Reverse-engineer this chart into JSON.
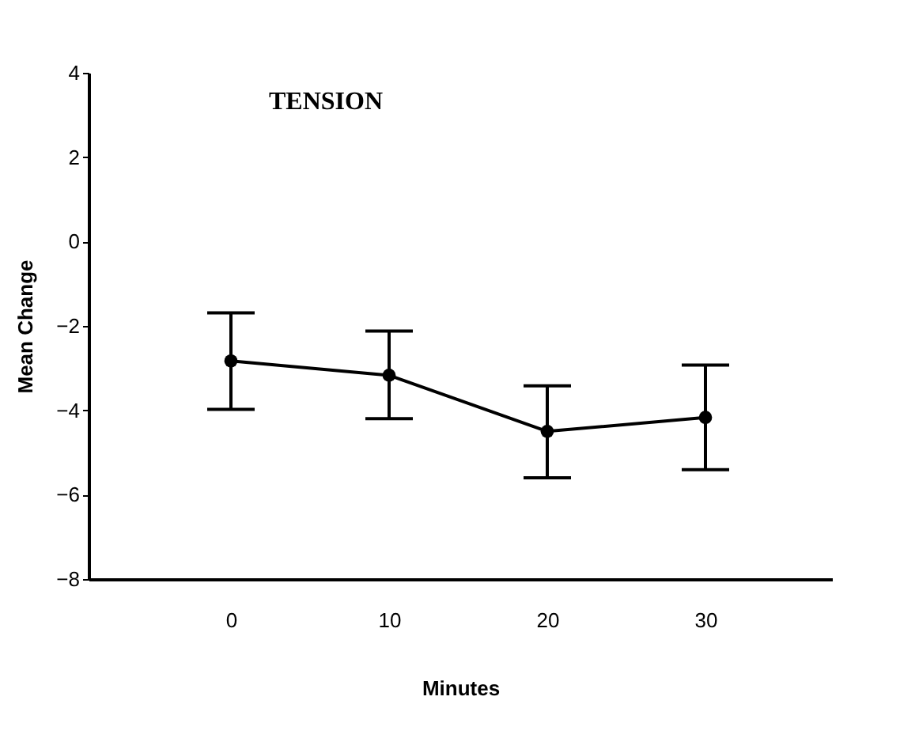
{
  "chart_data": {
    "type": "line",
    "title": "TENSION",
    "xlabel": "Minutes",
    "ylabel": "Mean Change",
    "x": [
      0,
      10,
      20,
      30
    ],
    "values": [
      -2.83,
      -3.17,
      -4.5,
      -4.17
    ],
    "errors": [
      [
        -3.98,
        -1.69
      ],
      [
        -4.2,
        -2.12
      ],
      [
        -5.6,
        -3.42
      ],
      [
        -5.41,
        -2.93
      ]
    ],
    "color": "#000000",
    "marker": "circle",
    "line_style": "solid",
    "xlim": [
      -9,
      38
    ],
    "xticks": [
      0,
      10,
      20,
      30
    ],
    "ylim": [
      -8,
      4
    ],
    "yticks": [
      -8,
      -6,
      -4,
      -2,
      0,
      2,
      4
    ],
    "grid": false
  }
}
